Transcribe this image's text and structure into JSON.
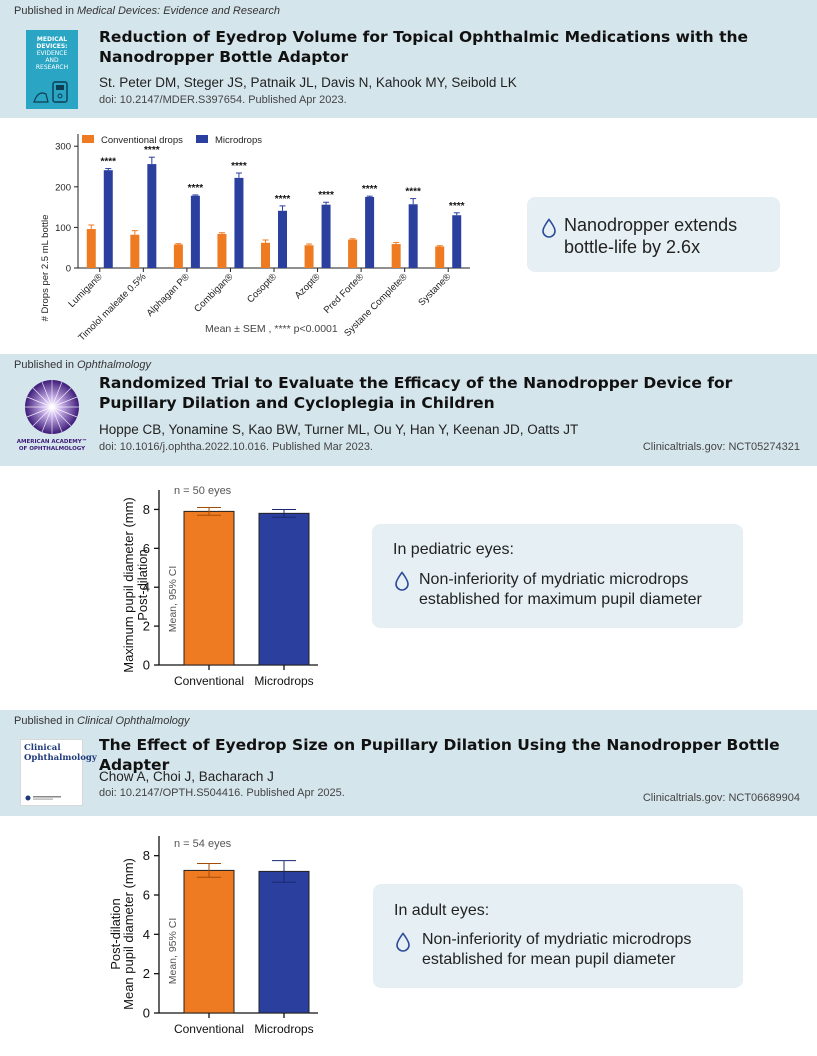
{
  "paper1": {
    "published_prefix": "Published in ",
    "journal": "Medical Devices: Evidence and Research",
    "title": "Reduction of Eyedrop Volume for Topical Ophthalmic Medications with the Nanodropper  Bottle Adaptor",
    "authors": "St. Peter DM, Steger JS, Patnaik JL, Davis N, Kahook MY, Seibold LK",
    "doi": "doi: 10.2147/MDER.S397654. Published Apr 2023.",
    "cover_text": [
      "MEDICAL",
      "DEVICES:",
      "EVIDENCE",
      "AND",
      "RESEARCH"
    ],
    "finding": "Nanodropper extends bottle-life by 2.6x"
  },
  "paper2": {
    "published_prefix": "Published in ",
    "journal": "Ophthalmology",
    "title": "Randomized Trial to Evaluate the Efficacy of the Nanodropper Device for Pupillary Dilation and Cycloplegia in Children",
    "authors": "Hoppe CB, Yonamine S, Kao BW, Turner ML, Ou Y, Han Y, Keenan JD, Oatts JT",
    "doi": "doi: 10.1016/j.ophtha.2022.10.016. Published Mar 2023.",
    "trial": "Clinicaltrials.gov: NCT05274321",
    "logo_text": [
      "AMERICAN ACADEMY™",
      "OF OPHTHALMOLOGY"
    ],
    "finding_heading": "In pediatric eyes:",
    "finding": "Non-inferiority of mydriatic microdrops established for maximum pupil diameter"
  },
  "paper3": {
    "published_prefix": "Published in ",
    "journal": "Clinical Ophthalmology",
    "title": "The Effect of Eyedrop Size on Pupillary Dilation Using the Nanodropper Bottle Adapter",
    "authors": "Chow A, Choi J, Bacharach J",
    "doi": "doi: 10.2147/OPTH.S504416. Published Apr 2025.",
    "trial": "Clinicaltrials.gov: NCT06689904",
    "cover_text": [
      "Clinical",
      "Ophthalmology"
    ],
    "finding_heading": "In adult eyes:",
    "finding": "Non-inferiority of mydriatic microdrops established for mean pupil diameter"
  },
  "colors": {
    "conventional": "#ee7b22",
    "microdrops": "#2b3f9e",
    "header_bg": "#d5e5ec",
    "box_bg": "#e6eff3"
  },
  "icons": {
    "finding": "droplet-icon"
  },
  "chart_data": [
    {
      "type": "bar",
      "categories": [
        "Lumigan®",
        "Timolol maleate 0.5%",
        "Alphagan P®",
        "Combigan®",
        "Cosopt®",
        "Azopt®",
        "Pred Forte®",
        "Systane Complete®",
        "Systane®"
      ],
      "series": [
        {
          "name": "Conventional drops",
          "values": [
            96,
            82,
            58,
            84,
            62,
            56,
            70,
            59,
            53
          ],
          "err": [
            10,
            10,
            2,
            3,
            7,
            3,
            2,
            4,
            2
          ]
        },
        {
          "name": "Microdrops",
          "values": [
            241,
            256,
            178,
            222,
            141,
            156,
            175,
            157,
            130
          ],
          "err": [
            4,
            17,
            2,
            12,
            12,
            6,
            2,
            14,
            6
          ]
        }
      ],
      "significance": "****",
      "ylabel": "# Drops per 2.5 mL bottle",
      "yticks": [
        0,
        100,
        200,
        300
      ],
      "ylim": [
        0,
        340
      ],
      "legend": "top",
      "note": "Mean ± SEM , **** p<0.0001"
    },
    {
      "type": "bar",
      "categories": [
        "Conventional",
        "Microdrops"
      ],
      "values": [
        7.9,
        7.8
      ],
      "err": [
        0.2,
        0.2
      ],
      "annotation": "n = 50 eyes",
      "ylabel": [
        "Post-dilation",
        "Maximum pupil diameter (mm)"
      ],
      "inner_label": "Mean, 95% CI",
      "yticks": [
        0,
        2,
        4,
        6,
        8
      ],
      "ylim": [
        0,
        9
      ]
    },
    {
      "type": "bar",
      "categories": [
        "Conventional",
        "Microdrops"
      ],
      "values": [
        7.25,
        7.2
      ],
      "err": [
        0.35,
        0.55
      ],
      "annotation": "n = 54 eyes",
      "ylabel": [
        "Post-dilation",
        "Mean pupil diameter (mm)"
      ],
      "inner_label": "Mean, 95% CI",
      "yticks": [
        0,
        2,
        4,
        6,
        8
      ],
      "ylim": [
        0,
        9
      ]
    }
  ]
}
